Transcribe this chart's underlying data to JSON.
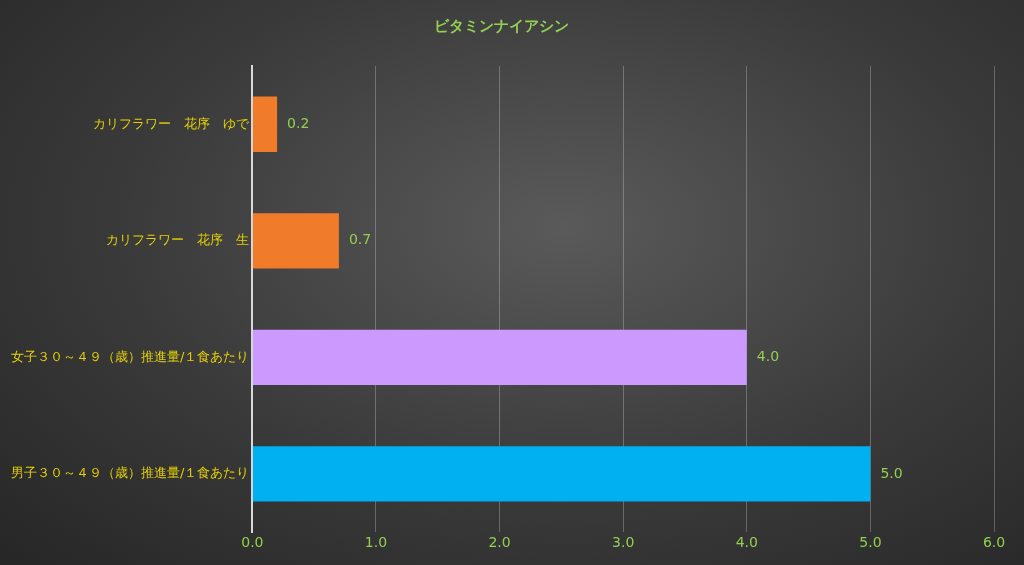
{
  "chart_data": {
    "type": "bar",
    "orientation": "horizontal",
    "title": "ビタミンナイアシン",
    "categories": [
      "カリフラワー　花序　ゆで",
      "カリフラワー　花序　生",
      "女子３０～４９（歳）推進量/１食あたり",
      "男子３０～４９（歳）推進量/１食あたり"
    ],
    "values": [
      0.2,
      0.7,
      4.0,
      5.0
    ],
    "colors": [
      "#f07b2b",
      "#f07b2b",
      "#cc99ff",
      "#00b0f0"
    ],
    "value_labels": [
      "0.2",
      "0.7",
      "4.0",
      "5.0"
    ],
    "xlim": [
      0,
      6
    ],
    "xticks": [
      {
        "value": 0,
        "label": "0.0"
      },
      {
        "value": 1,
        "label": "1.0"
      },
      {
        "value": 2,
        "label": "2.0"
      },
      {
        "value": 3,
        "label": "3.0"
      },
      {
        "value": 4,
        "label": "4.0"
      },
      {
        "value": 5,
        "label": "5.0"
      },
      {
        "value": 6,
        "label": "6.0"
      }
    ],
    "grid": "x",
    "legend": false
  }
}
